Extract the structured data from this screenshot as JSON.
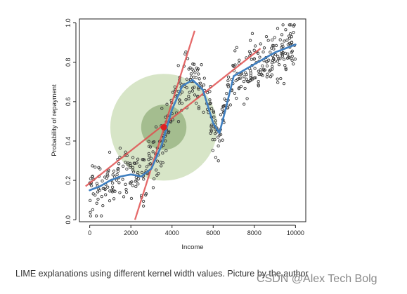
{
  "caption": "LIME explanations using different kernel width values. Picture by the author",
  "watermark": "CSDN @Alex Tech Bolg",
  "colors": {
    "points": "#3a3a3a",
    "smooth_curve": "#3f7fc0",
    "explanation_lines": "#e05050",
    "kernel_outer": "#d5e4c4",
    "kernel_inner": "#8fac78",
    "instance": "#dd2020"
  },
  "chart_data": {
    "type": "scatter",
    "title": "",
    "xlabel": "Income",
    "ylabel": "Probability of repayment",
    "xlim": [
      -500,
      10500
    ],
    "ylim": [
      -0.01,
      1.02
    ],
    "xticks": [
      0,
      2000,
      4000,
      6000,
      8000,
      10000
    ],
    "yticks": [
      0.0,
      0.2,
      0.4,
      0.6,
      0.8,
      1.0
    ],
    "ytick_labels": [
      "0.0",
      "0.2",
      "0.4",
      "0.6",
      "0.8",
      "1.0"
    ],
    "grid": false,
    "legend": "none",
    "points": {
      "x_range": [
        0,
        10000
      ],
      "count": 500,
      "noise_sd": 0.07
    },
    "smooth_curve": {
      "x": [
        0,
        500,
        1000,
        1500,
        2000,
        2500,
        3000,
        3500,
        4000,
        4500,
        5000,
        5500,
        6000,
        6300,
        6600,
        7000,
        7500,
        8000,
        8500,
        9000,
        9500,
        10000
      ],
      "y": [
        0.15,
        0.17,
        0.2,
        0.22,
        0.23,
        0.22,
        0.26,
        0.38,
        0.56,
        0.68,
        0.71,
        0.66,
        0.49,
        0.44,
        0.56,
        0.73,
        0.76,
        0.79,
        0.82,
        0.85,
        0.87,
        0.89
      ]
    },
    "kernels": [
      {
        "name": "wide",
        "center_x": 3600,
        "center_y": 0.47,
        "radius_x": 2600
      },
      {
        "name": "narrow",
        "center_x": 3600,
        "center_y": 0.47,
        "radius_x": 1100
      }
    ],
    "instance_point": {
      "x": 3600,
      "y": 0.47
    },
    "explanation_lines": [
      {
        "x": [
          -200,
          8300
        ],
        "y": [
          0.17,
          0.87
        ]
      },
      {
        "x": [
          2200,
          5100
        ],
        "y": [
          0.0,
          0.96
        ]
      }
    ]
  }
}
